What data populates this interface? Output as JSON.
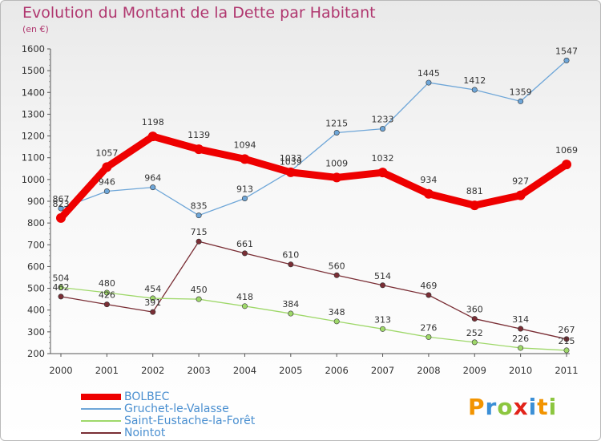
{
  "header": {
    "title": "Evolution du Montant de la Dette par Habitant",
    "unit": "(en €)"
  },
  "logo": {
    "letters": [
      "P",
      "r",
      "o",
      "x",
      "i",
      "t",
      "i"
    ],
    "colors": [
      "#f29400",
      "#3b8fd6",
      "#8cc63f",
      "#e2231a",
      "#3b8fd6",
      "#f29400",
      "#8cc63f"
    ]
  },
  "chart_data": {
    "type": "line",
    "title": "Evolution du Montant de la Dette par Habitant",
    "ylabel": "(en €)",
    "xlabel": "",
    "x": [
      "2000",
      "2001",
      "2002",
      "2003",
      "2004",
      "2005",
      "2006",
      "2007",
      "2008",
      "2009",
      "2010",
      "2011"
    ],
    "ylim": [
      200,
      1600
    ],
    "yticks": [
      200,
      300,
      400,
      500,
      600,
      700,
      800,
      900,
      1000,
      1100,
      1200,
      1300,
      1400,
      1500,
      1600
    ],
    "grid": false,
    "legend_position": "bottom-left",
    "series": [
      {
        "name": "BOLBEC",
        "color": "#ee0000",
        "values": [
          823,
          1057,
          1198,
          1139,
          1094,
          1033,
          1009,
          1032,
          934,
          881,
          927,
          1069
        ],
        "labels": [
          "823",
          "1057",
          "1198",
          "1139",
          "1094",
          "1033",
          "1009",
          "1032",
          "934",
          "881",
          "927",
          "1069"
        ]
      },
      {
        "name": "Gruchet-le-Valasse",
        "color": "#6ea6d8",
        "values": [
          867,
          946,
          964,
          835,
          913,
          1039,
          1215,
          1233,
          1445,
          1412,
          1359,
          1547
        ],
        "labels": [
          "867",
          "946",
          "964",
          "835",
          "913",
          "1039",
          "1215",
          "1233",
          "1445",
          "1412",
          "1359",
          "1547"
        ]
      },
      {
        "name": "Saint-Eustache-la-Forêt",
        "color": "#9fd86a",
        "values": [
          504,
          480,
          454,
          450,
          418,
          384,
          348,
          313,
          276,
          252,
          226,
          215
        ],
        "labels": [
          "504",
          "480",
          "454",
          "450",
          "418",
          "384",
          "348",
          "313",
          "276",
          "252",
          "226",
          "215"
        ]
      },
      {
        "name": "Nointot",
        "color": "#7a2e35",
        "values": [
          462,
          426,
          391,
          715,
          661,
          610,
          560,
          514,
          469,
          360,
          314,
          267
        ],
        "labels": [
          "462",
          "426",
          "391",
          "715",
          "661",
          "610",
          "560",
          "514",
          "469",
          "360",
          "314",
          "267"
        ]
      }
    ]
  }
}
